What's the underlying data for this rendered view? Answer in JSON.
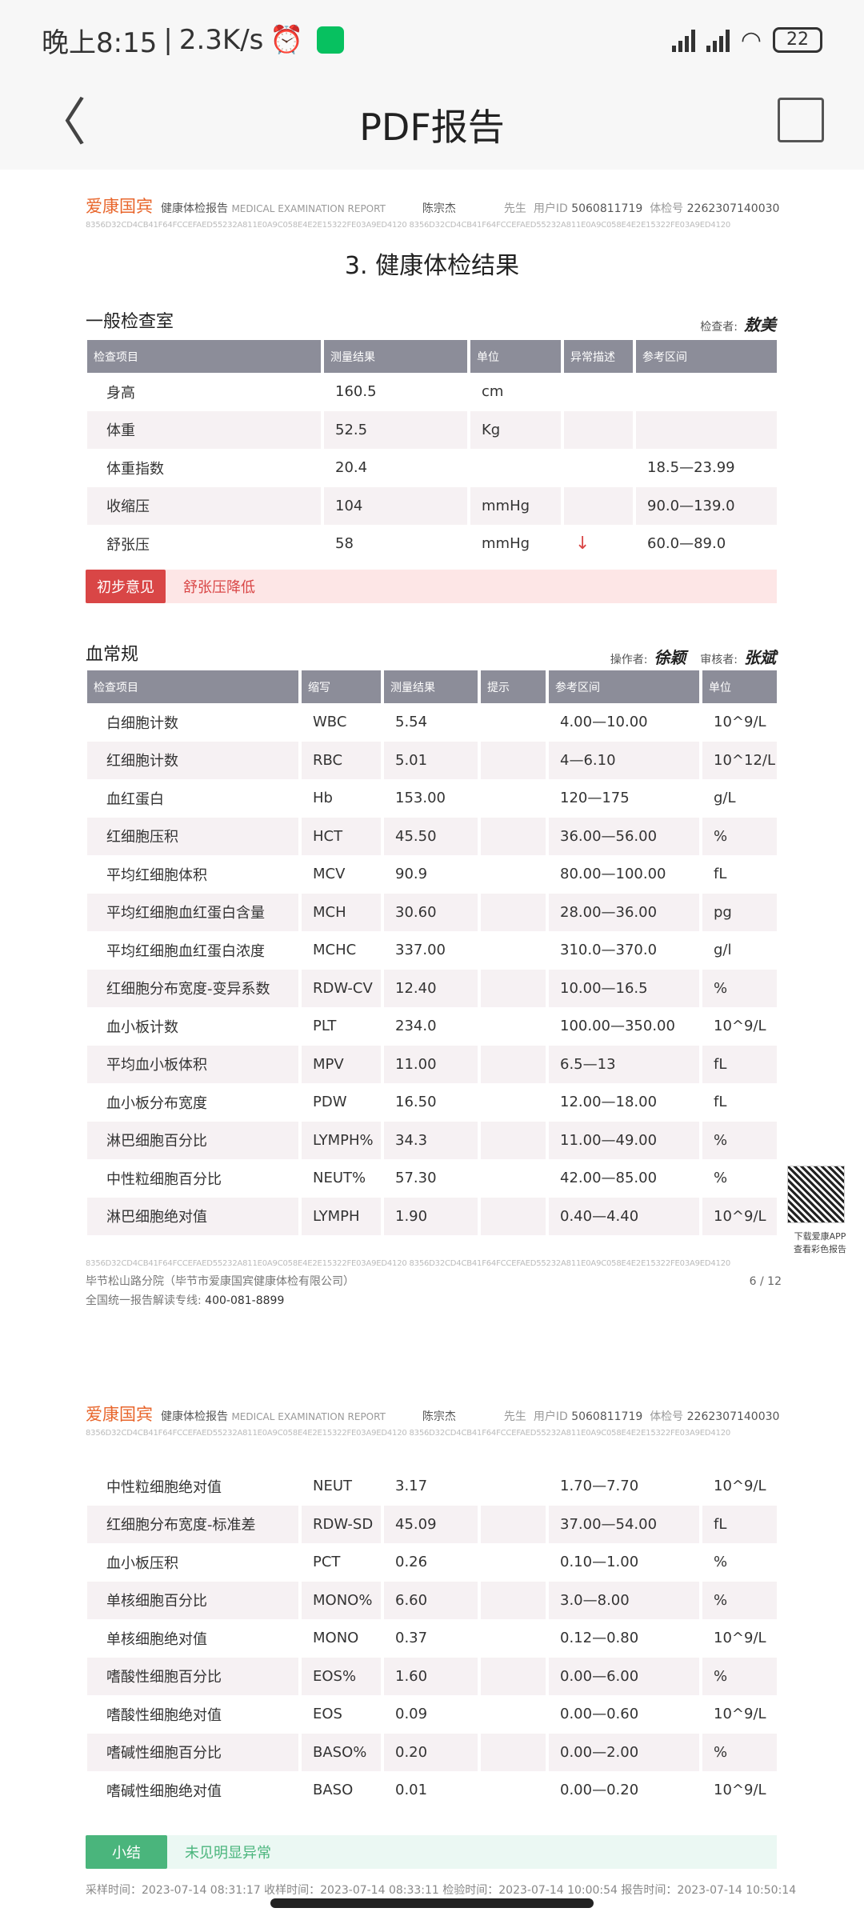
{
  "status": {
    "time": "晚上8:15",
    "speed": "2.3K/s",
    "battery": "22"
  },
  "nav": {
    "title": "PDF报告"
  },
  "report_header": {
    "brand": "爱康国宾",
    "doc_title": "健康体检报告",
    "doc_title_en": "MEDICAL EXAMINATION REPORT",
    "name": "陈宗杰",
    "salutation": "先生",
    "user_id_label": "用户ID",
    "user_id": "5060811719",
    "exam_no_label": "体检号",
    "exam_no": "2262307140030",
    "hash": "8356D32CD4CB41F64FCCEFAED55232A811E0A9C058E4E2E15322FE03A9ED4120  8356D32CD4CB41F64FCCEFAED55232A811E0A9C058E4E2E15322FE03A9ED4120"
  },
  "page_title": "3. 健康体检结果",
  "general": {
    "title": "一般检查室",
    "examiner_label": "检查者:",
    "examiner": "敖美",
    "headers": [
      "检查项目",
      "测量结果",
      "单位",
      "异常描述",
      "参考区间"
    ],
    "rows": [
      [
        "身高",
        "160.5",
        "cm",
        "",
        ""
      ],
      [
        "体重",
        "52.5",
        "Kg",
        "",
        ""
      ],
      [
        "体重指数",
        "20.4",
        "",
        "",
        "18.5—23.99"
      ],
      [
        "收缩压",
        "104",
        "mmHg",
        "",
        "90.0—139.0"
      ],
      [
        "舒张压",
        "58",
        "mmHg",
        "↓",
        "60.0—89.0"
      ]
    ],
    "opinion_label": "初步意见",
    "opinion": "舒张压降低"
  },
  "blood": {
    "title": "血常规",
    "operator_label": "操作者:",
    "operator": "徐颖",
    "reviewer_label": "审核者:",
    "reviewer": "张斌",
    "headers": [
      "检查项目",
      "缩写",
      "测量结果",
      "提示",
      "参考区间",
      "单位"
    ],
    "rows": [
      [
        "白细胞计数",
        "WBC",
        "5.54",
        "",
        "4.00—10.00",
        "10^9/L"
      ],
      [
        "红细胞计数",
        "RBC",
        "5.01",
        "",
        "4—6.10",
        "10^12/L"
      ],
      [
        "血红蛋白",
        "Hb",
        "153.00",
        "",
        "120—175",
        "g/L"
      ],
      [
        "红细胞压积",
        "HCT",
        "45.50",
        "",
        "36.00—56.00",
        "%"
      ],
      [
        "平均红细胞体积",
        "MCV",
        "90.9",
        "",
        "80.00—100.00",
        "fL"
      ],
      [
        "平均红细胞血红蛋白含量",
        "MCH",
        "30.60",
        "",
        "28.00—36.00",
        "pg"
      ],
      [
        "平均红细胞血红蛋白浓度",
        "MCHC",
        "337.00",
        "",
        "310.0—370.0",
        "g/l"
      ],
      [
        "红细胞分布宽度-变异系数",
        "RDW-CV",
        "12.40",
        "",
        "10.00—16.5",
        "%"
      ],
      [
        "血小板计数",
        "PLT",
        "234.0",
        "",
        "100.00—350.00",
        "10^9/L"
      ],
      [
        "平均血小板体积",
        "MPV",
        "11.00",
        "",
        "6.5—13",
        "fL"
      ],
      [
        "血小板分布宽度",
        "PDW",
        "16.50",
        "",
        "12.00—18.00",
        "fL"
      ],
      [
        "淋巴细胞百分比",
        "LYMPH%",
        "34.3",
        "",
        "11.00—49.00",
        "%"
      ],
      [
        "中性粒细胞百分比",
        "NEUT%",
        "57.30",
        "",
        "42.00—85.00",
        "%"
      ],
      [
        "淋巴细胞绝对值",
        "LYMPH",
        "1.90",
        "",
        "0.40—4.40",
        "10^9/L"
      ]
    ],
    "rows_page2": [
      [
        "中性粒细胞绝对值",
        "NEUT",
        "3.17",
        "",
        "1.70—7.70",
        "10^9/L"
      ],
      [
        "红细胞分布宽度-标准差",
        "RDW-SD",
        "45.09",
        "",
        "37.00—54.00",
        "fL"
      ],
      [
        "血小板压积",
        "PCT",
        "0.26",
        "",
        "0.10—1.00",
        "%"
      ],
      [
        "单核细胞百分比",
        "MONO%",
        "6.60",
        "",
        "3.0—8.00",
        "%"
      ],
      [
        "单核细胞绝对值",
        "MONO",
        "0.37",
        "",
        "0.12—0.80",
        "10^9/L"
      ],
      [
        "嗜酸性细胞百分比",
        "EOS%",
        "1.60",
        "",
        "0.00—6.00",
        "%"
      ],
      [
        "嗜酸性细胞绝对值",
        "EOS",
        "0.09",
        "",
        "0.00—0.60",
        "10^9/L"
      ],
      [
        "嗜碱性细胞百分比",
        "BASO%",
        "0.20",
        "",
        "0.00—2.00",
        "%"
      ],
      [
        "嗜碱性细胞绝对值",
        "BASO",
        "0.01",
        "",
        "0.00—0.20",
        "10^9/L"
      ]
    ],
    "summary_label": "小结",
    "summary": "未见明显异常",
    "timeline": "采样时间：2023-07-14 08:31:17  收样时间：2023-07-14 08:33:11  检验时间：2023-07-14 10:00:54  报告时间：2023-07-14 10:50:14"
  },
  "footer": {
    "branch": "毕节松山路分院（毕节市爱康国宾健康体检有限公司）",
    "hotline_label": "全国统一报告解读专线:",
    "hotline": "400-081-8899",
    "page": "6 / 12"
  },
  "qr": {
    "line1": "下载爱康APP",
    "line2": "查看彩色报告"
  }
}
